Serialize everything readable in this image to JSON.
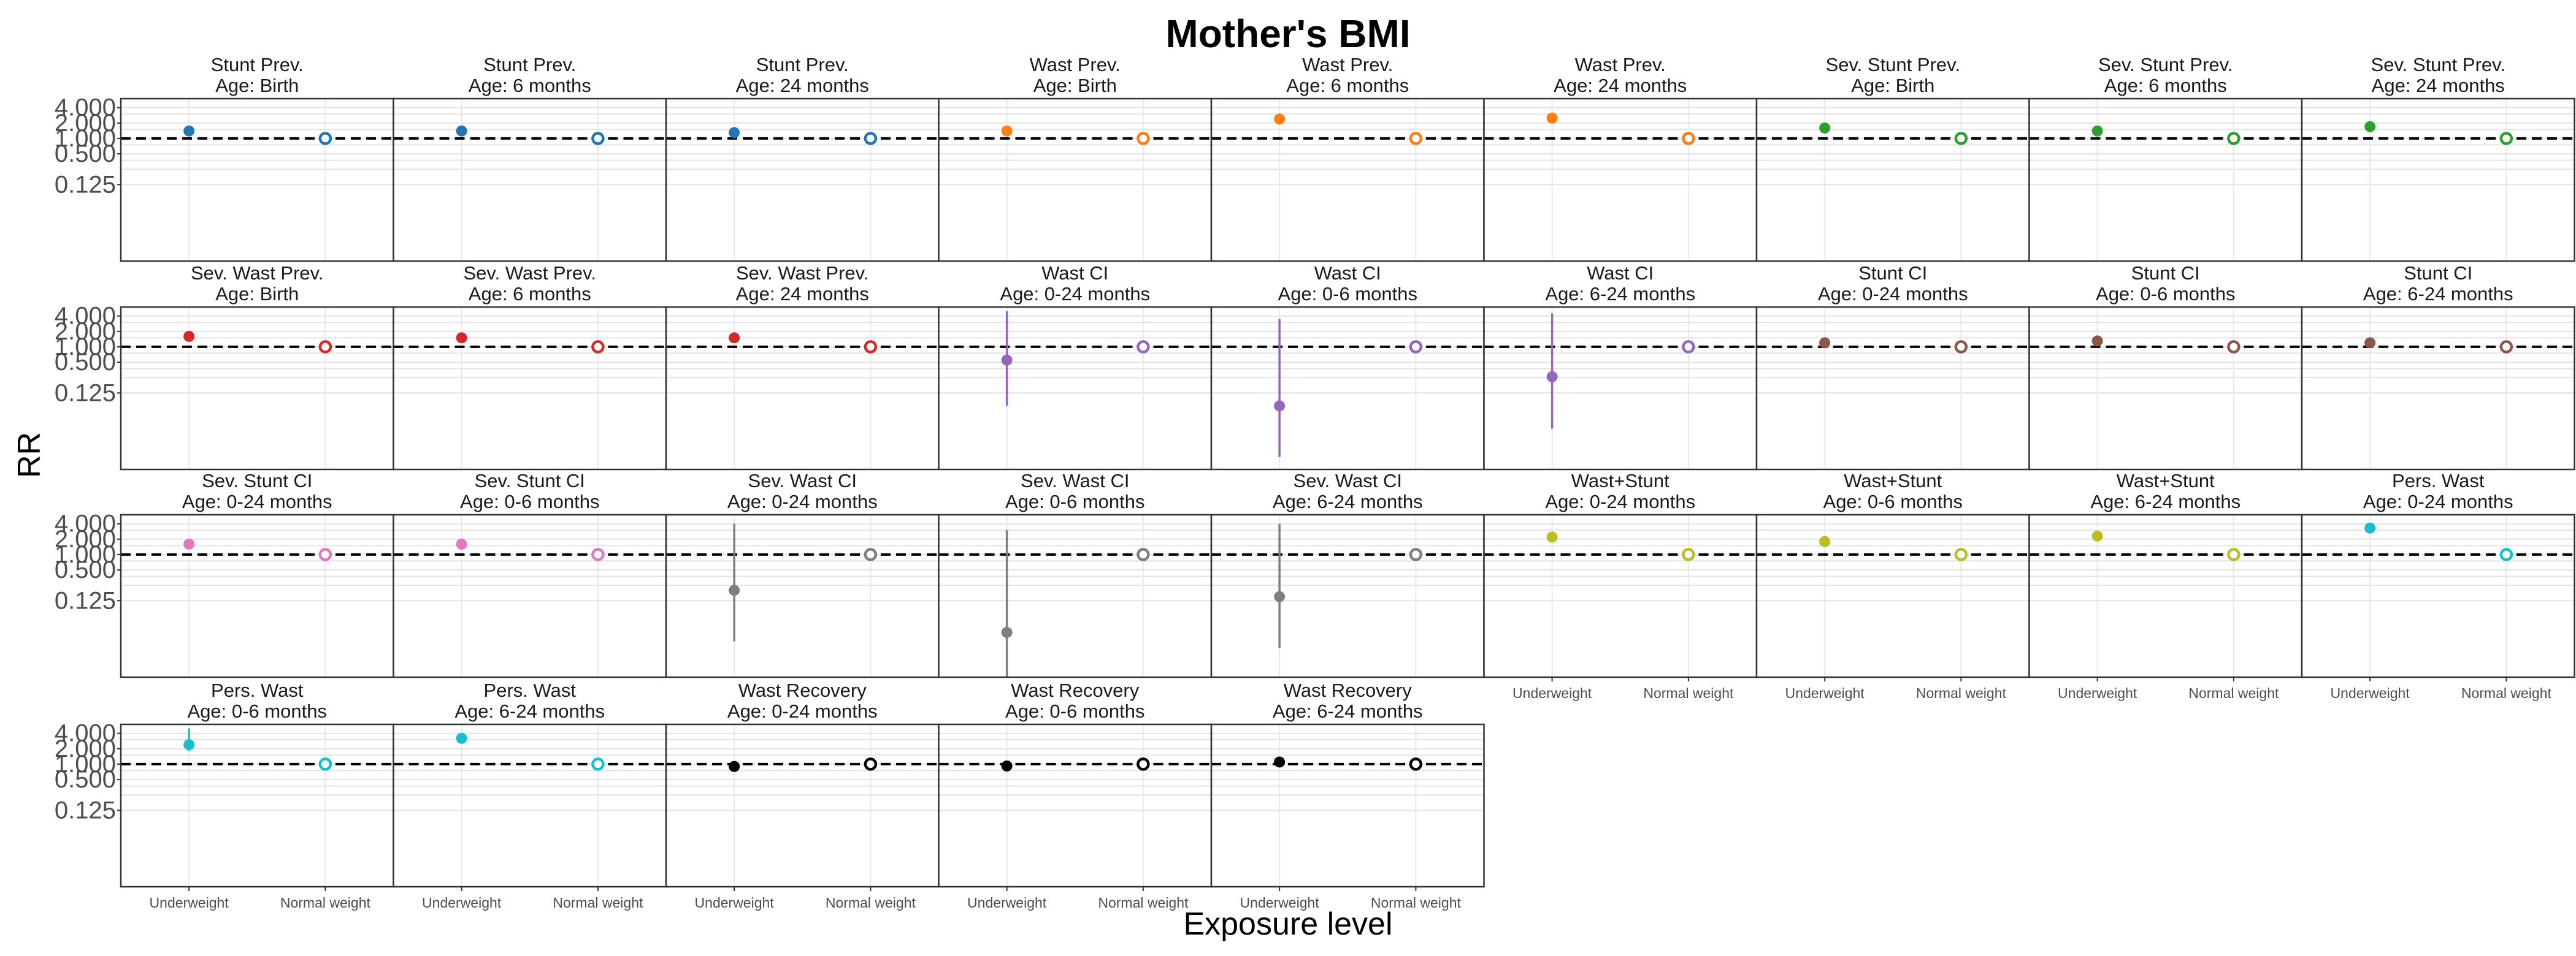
{
  "title": "Mother's BMI",
  "ylabel": "RR",
  "xlabel": "Exposure level",
  "chart_data": {
    "type": "scatter",
    "title": "Mother's BMI",
    "xlabel": "Exposure level",
    "ylabel": "RR",
    "y_scale": "log2",
    "ylim": [
      0.004,
      6
    ],
    "y_ticks": [
      0.125,
      0.5,
      1,
      2,
      4
    ],
    "y_tick_labels": [
      "0.125",
      "0.500",
      "1.000",
      "2.000",
      "4.000"
    ],
    "categories": [
      "Underweight",
      "Normal weight"
    ],
    "reference_line": 1,
    "grid": true,
    "facets": [
      {
        "strip": [
          "Stunt Prev.",
          "Age: Birth"
        ],
        "color": "#1F77B4",
        "rr": 1.4,
        "lower": 1.3,
        "upper": 1.5
      },
      {
        "strip": [
          "Stunt Prev.",
          "Age: 6 months"
        ],
        "color": "#1F77B4",
        "rr": 1.4,
        "lower": 1.3,
        "upper": 1.5
      },
      {
        "strip": [
          "Stunt Prev.",
          "Age: 24 months"
        ],
        "color": "#1F77B4",
        "rr": 1.3,
        "lower": 1.2,
        "upper": 1.4
      },
      {
        "strip": [
          "Wast Prev.",
          "Age: Birth"
        ],
        "color": "#FF7F0E",
        "rr": 1.4,
        "lower": 1.3,
        "upper": 1.5
      },
      {
        "strip": [
          "Wast Prev.",
          "Age: 6 months"
        ],
        "color": "#FF7F0E",
        "rr": 2.4,
        "lower": 2.0,
        "upper": 2.8
      },
      {
        "strip": [
          "Wast Prev.",
          "Age: 24 months"
        ],
        "color": "#FF7F0E",
        "rr": 2.5,
        "lower": 2.0,
        "upper": 3.1
      },
      {
        "strip": [
          "Sev. Stunt Prev.",
          "Age: Birth"
        ],
        "color": "#2CA02C",
        "rr": 1.6,
        "lower": 1.3,
        "upper": 1.9
      },
      {
        "strip": [
          "Sev. Stunt Prev.",
          "Age: 6 months"
        ],
        "color": "#2CA02C",
        "rr": 1.4,
        "lower": 1.3,
        "upper": 1.6
      },
      {
        "strip": [
          "Sev. Stunt Prev.",
          "Age: 24 months"
        ],
        "color": "#2CA02C",
        "rr": 1.7,
        "lower": 1.4,
        "upper": 2.0
      },
      {
        "strip": [
          "Sev. Wast Prev.",
          "Age: Birth"
        ],
        "color": "#D62728",
        "rr": 1.6,
        "lower": 1.4,
        "upper": 1.8
      },
      {
        "strip": [
          "Sev. Wast Prev.",
          "Age: 6 months"
        ],
        "color": "#D62728",
        "rr": 1.5,
        "lower": 1.3,
        "upper": 1.7
      },
      {
        "strip": [
          "Sev. Wast Prev.",
          "Age: 24 months"
        ],
        "color": "#D62728",
        "rr": 1.5,
        "lower": 1.3,
        "upper": 1.7
      },
      {
        "strip": [
          "Wast CI",
          "Age: 0-24 months"
        ],
        "color": "#9467BD",
        "rr": 0.55,
        "lower": 0.07,
        "upper": 5.0
      },
      {
        "strip": [
          "Wast CI",
          "Age: 0-6 months"
        ],
        "color": "#9467BD",
        "rr": 0.07,
        "lower": 0.007,
        "upper": 3.5
      },
      {
        "strip": [
          "Wast CI",
          "Age: 6-24 months"
        ],
        "color": "#9467BD",
        "rr": 0.26,
        "lower": 0.025,
        "upper": 4.5
      },
      {
        "strip": [
          "Stunt CI",
          "Age: 0-24 months"
        ],
        "color": "#8C564B",
        "rr": 1.2,
        "lower": 1.05,
        "upper": 1.35
      },
      {
        "strip": [
          "Stunt CI",
          "Age: 0-6 months"
        ],
        "color": "#8C564B",
        "rr": 1.3,
        "lower": 1.1,
        "upper": 1.5
      },
      {
        "strip": [
          "Stunt CI",
          "Age: 6-24 months"
        ],
        "color": "#8C564B",
        "rr": 1.2,
        "lower": 1.05,
        "upper": 1.35
      },
      {
        "strip": [
          "Sev. Stunt CI",
          "Age: 0-24 months"
        ],
        "color": "#E377C2",
        "rr": 1.6,
        "lower": 1.4,
        "upper": 1.8
      },
      {
        "strip": [
          "Sev. Stunt CI",
          "Age: 0-6 months"
        ],
        "color": "#E377C2",
        "rr": 1.6,
        "lower": 1.4,
        "upper": 1.8
      },
      {
        "strip": [
          "Sev. Wast CI",
          "Age: 0-24 months"
        ],
        "color": "#7F7F7F",
        "rr": 0.2,
        "lower": 0.02,
        "upper": 4.0
      },
      {
        "strip": [
          "Sev. Wast CI",
          "Age: 0-6 months"
        ],
        "color": "#7F7F7F",
        "rr": 0.03,
        "lower": 0.004,
        "upper": 3.0
      },
      {
        "strip": [
          "Sev. Wast CI",
          "Age: 6-24 months"
        ],
        "color": "#7F7F7F",
        "rr": 0.15,
        "lower": 0.015,
        "upper": 4.0
      },
      {
        "strip": [
          "Wast+Stunt",
          "Age: 0-24 months"
        ],
        "color": "#BCBD22",
        "rr": 2.2,
        "lower": 1.9,
        "upper": 2.5
      },
      {
        "strip": [
          "Wast+Stunt",
          "Age: 0-6 months"
        ],
        "color": "#BCBD22",
        "rr": 1.8,
        "lower": 1.5,
        "upper": 2.1
      },
      {
        "strip": [
          "Wast+Stunt",
          "Age: 6-24 months"
        ],
        "color": "#BCBD22",
        "rr": 2.3,
        "lower": 2.0,
        "upper": 2.6
      },
      {
        "strip": [
          "Pers. Wast",
          "Age: 0-24 months"
        ],
        "color": "#17BECF",
        "rr": 3.3,
        "lower": 2.8,
        "upper": 3.9
      },
      {
        "strip": [
          "Pers. Wast",
          "Age: 0-6 months"
        ],
        "color": "#17BECF",
        "rr": 2.4,
        "lower": 1.8,
        "upper": 5.0
      },
      {
        "strip": [
          "Pers. Wast",
          "Age: 6-24 months"
        ],
        "color": "#17BECF",
        "rr": 3.2,
        "lower": 2.6,
        "upper": 4.0
      },
      {
        "strip": [
          "Wast Recovery",
          "Age: 0-24 months"
        ],
        "color": "#000000",
        "rr": 0.9,
        "lower": 0.85,
        "upper": 0.95
      },
      {
        "strip": [
          "Wast Recovery",
          "Age: 0-6 months"
        ],
        "color": "#000000",
        "rr": 0.92,
        "lower": 0.87,
        "upper": 0.97
      },
      {
        "strip": [
          "Wast Recovery",
          "Age: 6-24 months"
        ],
        "color": "#000000",
        "rr": 1.1,
        "lower": 1.02,
        "upper": 1.18
      }
    ]
  }
}
